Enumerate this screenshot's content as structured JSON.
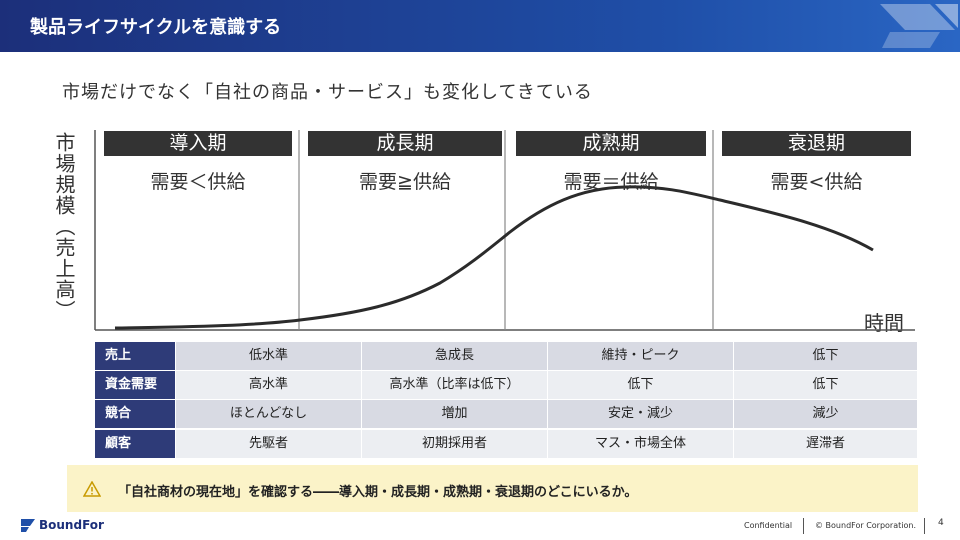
{
  "header": {
    "title": "製品ライフサイクルを意識する"
  },
  "subtitle": "市場だけでなく「自社の商品・サービス」も変化してきている",
  "diagram": {
    "y_axis_label": "市場規模（売上高）",
    "x_axis_label": "時間",
    "phases": [
      {
        "name": "導入期",
        "balance": "需要＜供給"
      },
      {
        "name": "成長期",
        "balance": "需要≧供給"
      },
      {
        "name": "成熟期",
        "balance": "需要＝供給"
      },
      {
        "name": "衰退期",
        "balance": "需要<供給"
      }
    ]
  },
  "table": {
    "rows": [
      [
        "売上",
        "低水準",
        "急成長",
        "維持・ピーク",
        "低下"
      ],
      [
        "資金需要",
        "高水準",
        "高水準（比率は低下）",
        "低下",
        "低下"
      ],
      [
        "競合",
        "ほとんどなし",
        "増加",
        "安定・減少",
        "減少"
      ],
      [
        "顧客",
        "先駆者",
        "初期採用者",
        "マス・市場全体",
        "遅滞者"
      ]
    ]
  },
  "note": {
    "text": "「自社商材の現在地」を確認する――導入期・成長期・成熟期・衰退期のどこにいるか。"
  },
  "footer": {
    "logo": "BoundFor",
    "confidential": "Confidential",
    "copyright": "© BoundFor Corporation.",
    "page_number": "4"
  }
}
